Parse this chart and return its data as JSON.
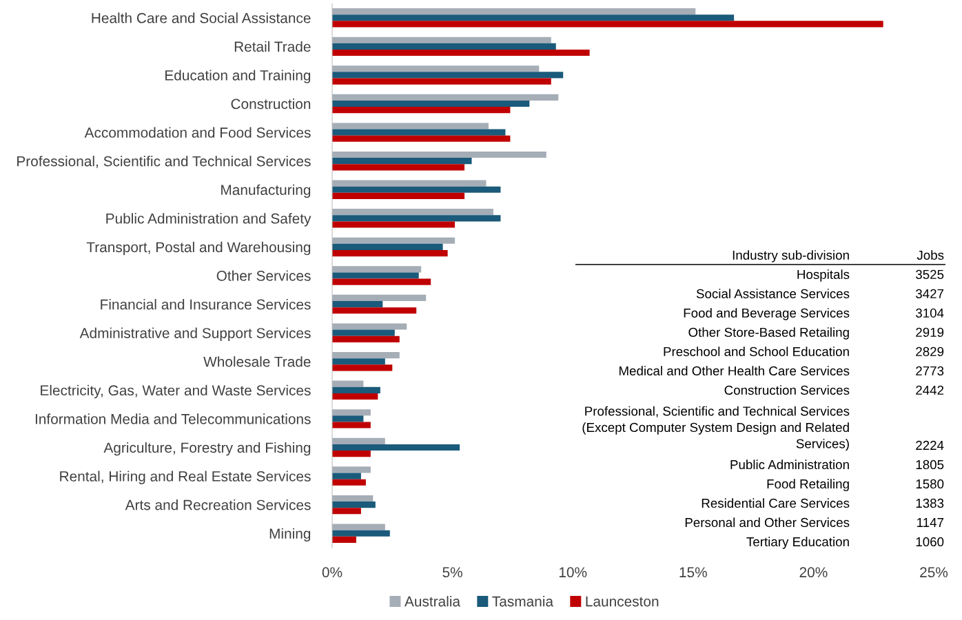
{
  "chart_data": [
    {
      "type": "bar",
      "orientation": "horizontal",
      "categories": [
        "Health Care and Social Assistance",
        "Retail Trade",
        "Education and Training",
        "Construction",
        "Accommodation and Food Services",
        "Professional, Scientific and Technical Services",
        "Manufacturing",
        "Public Administration and Safety",
        "Transport, Postal and Warehousing",
        "Other Services",
        "Financial and Insurance Services",
        "Administrative and Support Services",
        "Wholesale Trade",
        "Electricity, Gas, Water and Waste Services",
        "Information Media and Telecommunications",
        "Agriculture, Forestry and Fishing",
        "Rental, Hiring and Real Estate Services",
        "Arts and Recreation Services",
        "Mining"
      ],
      "series": [
        {
          "name": "Australia",
          "color": "#a5adb6",
          "values": [
            15.1,
            9.1,
            8.6,
            9.4,
            6.5,
            8.9,
            6.4,
            6.7,
            5.1,
            3.7,
            3.9,
            3.1,
            2.8,
            1.3,
            1.6,
            2.2,
            1.6,
            1.7,
            2.2
          ]
        },
        {
          "name": "Tasmania",
          "color": "#1a5a7a",
          "values": [
            16.7,
            9.3,
            9.6,
            8.2,
            7.2,
            5.8,
            7.0,
            7.0,
            4.6,
            3.6,
            2.1,
            2.6,
            2.2,
            2.0,
            1.3,
            5.3,
            1.2,
            1.8,
            2.4
          ]
        },
        {
          "name": "Launceston",
          "color": "#c00000",
          "values": [
            22.9,
            10.7,
            9.1,
            7.4,
            7.4,
            5.5,
            5.5,
            5.1,
            4.8,
            4.1,
            3.5,
            2.8,
            2.5,
            1.9,
            1.6,
            1.6,
            1.4,
            1.2,
            1.0
          ]
        }
      ],
      "xlim": [
        0,
        25
      ],
      "xticks": [
        {
          "value": 0,
          "label": "0%"
        },
        {
          "value": 5,
          "label": "5%"
        },
        {
          "value": 10,
          "label": "10%"
        },
        {
          "value": 15,
          "label": "15%"
        },
        {
          "value": 20,
          "label": "20%"
        },
        {
          "value": 25,
          "label": "25%"
        }
      ],
      "grid": false,
      "legend": "bottom"
    },
    {
      "type": "other",
      "xlabel": "Industry sub-division",
      "ylabel": "Jobs",
      "data_labels": true,
      "categories": [
        "Hospitals",
        "Social Assistance Services",
        "Food and Beverage Services",
        "Other Store-Based Retailing",
        "Preschool and School Education",
        "Medical and Other Health Care Services",
        "Construction Services",
        "Professional, Scientific and Technical Services (Except Computer System Design and Related Services)",
        "Public Administration",
        "Food Retailing",
        "Residential Care Services",
        "Personal and Other Services",
        "Tertiary Education"
      ],
      "values": [
        3525,
        3427,
        3104,
        2919,
        2829,
        2773,
        2442,
        2224,
        1805,
        1580,
        1383,
        1147,
        1060
      ]
    }
  ]
}
